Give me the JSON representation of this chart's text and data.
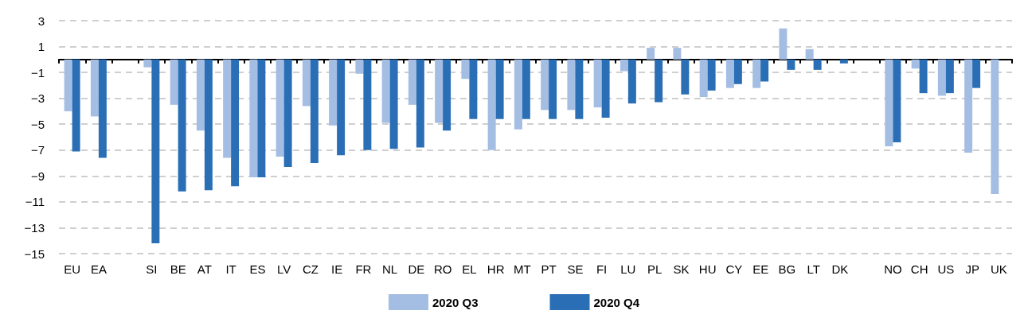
{
  "chart_data": {
    "type": "bar",
    "categories": [
      "EU",
      "EA",
      null,
      "SI",
      "BE",
      "AT",
      "IT",
      "ES",
      "LV",
      "CZ",
      "IE",
      "FR",
      "NL",
      "DE",
      "RO",
      "EL",
      "HR",
      "MT",
      "PT",
      "SE",
      "FI",
      "LU",
      "PL",
      "SK",
      "HU",
      "CY",
      "EE",
      "BG",
      "LT",
      "DK",
      null,
      "NO",
      "CH",
      "US",
      "JP",
      "UK"
    ],
    "series": [
      {
        "name": "2020 Q3",
        "color": "#a4bde3",
        "values": [
          -4.0,
          -4.4,
          null,
          -0.6,
          -3.5,
          -5.5,
          -7.6,
          -9.1,
          -7.5,
          -3.6,
          -5.1,
          -1.1,
          -4.9,
          -3.5,
          -4.9,
          -1.5,
          -7.0,
          -5.4,
          -3.9,
          -3.9,
          -3.7,
          -0.9,
          0.9,
          0.9,
          -2.9,
          -2.2,
          -2.2,
          2.4,
          0.8,
          null,
          null,
          -6.7,
          -0.7,
          -2.8,
          -7.2,
          -10.4
        ]
      },
      {
        "name": "2020 Q4",
        "color": "#2a6eb5",
        "values": [
          -7.1,
          -7.6,
          null,
          -14.2,
          -10.2,
          -10.1,
          -9.8,
          -9.1,
          -8.3,
          -8.0,
          -7.4,
          -7.0,
          -6.9,
          -6.8,
          -5.5,
          -4.6,
          -4.6,
          -4.6,
          -4.6,
          -4.6,
          -4.5,
          -3.4,
          -3.3,
          -2.7,
          -2.4,
          -1.9,
          -1.7,
          -0.8,
          -0.8,
          -0.3,
          null,
          -6.4,
          -2.6,
          -2.6,
          -2.2,
          null
        ]
      }
    ],
    "ylim": [
      -15,
      3
    ],
    "yticks": [
      3,
      1,
      {
        "value": -1,
        "label": "−1"
      },
      {
        "value": -3,
        "label": "−3"
      },
      {
        "value": -5,
        "label": "−5"
      },
      {
        "value": -7,
        "label": "−7"
      },
      {
        "value": -9,
        "label": "−9"
      },
      {
        "value": -11,
        "label": "−11"
      },
      {
        "value": -13,
        "label": "−13"
      },
      {
        "value": -15,
        "label": "−15"
      }
    ],
    "grid": "y",
    "legend": "bottom"
  }
}
